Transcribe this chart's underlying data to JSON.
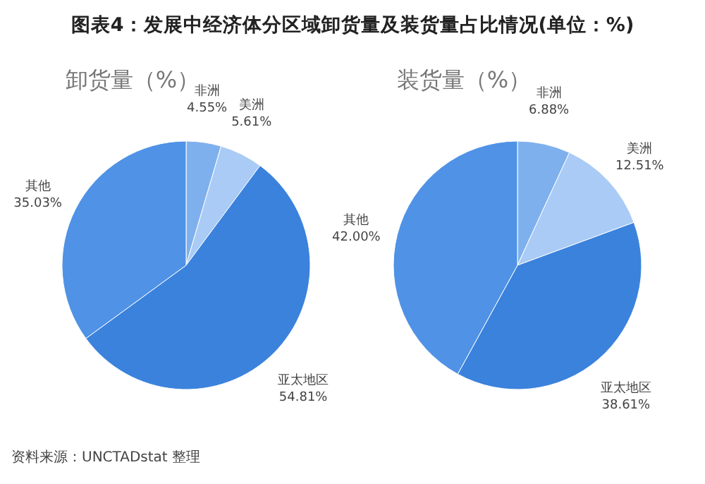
{
  "chart_data": [
    {
      "type": "pie",
      "title": "图表4：发展中经济体分区域卸货量及装货量占比情况(单位：%)",
      "subtitle": "卸货量（%）",
      "categories": [
        "非洲",
        "美洲",
        "亚太地区",
        "其他"
      ],
      "values": [
        4.55,
        5.61,
        54.81,
        35.03
      ],
      "value_labels": [
        "4.55%",
        "5.61%",
        "54.81%",
        "35.03%"
      ],
      "colors": [
        "#7fb0ee",
        "#a9cbf5",
        "#3b82dd",
        "#4f92e6"
      ],
      "annotations": [
        "资料来源：UNCTADstat 整理"
      ]
    },
    {
      "type": "pie",
      "subtitle": "装货量（%）",
      "categories": [
        "非洲",
        "美洲",
        "亚太地区",
        "其他"
      ],
      "values": [
        6.88,
        12.51,
        38.61,
        42.0
      ],
      "value_labels": [
        "6.88%",
        "12.51%",
        "38.61%",
        "42.00%"
      ],
      "colors": [
        "#7fb0ee",
        "#a9cbf5",
        "#3b82dd",
        "#4f92e6"
      ]
    }
  ]
}
